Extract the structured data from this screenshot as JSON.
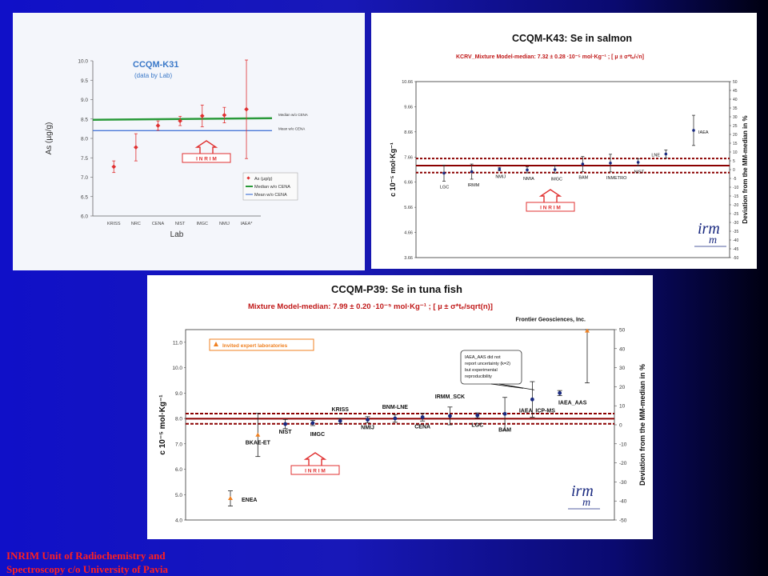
{
  "footer": {
    "line1": "INRIM Unit of Radiochemistry and",
    "line2": "Spectroscopy c/o University of Pavia"
  },
  "inrim_label": "I N R I M",
  "chart_data": [
    {
      "type": "scatter",
      "title": "CCQM-K31",
      "subtitle": "(data by Lab)",
      "xlabel": "Lab",
      "ylabel": "As (µg/g)",
      "ylim": [
        6.0,
        10.0
      ],
      "yticks": [
        "6.0",
        "6.5",
        "7.0",
        "7.5",
        "8.0",
        "8.5",
        "9.0",
        "9.5",
        "10.0"
      ],
      "categories": [
        "KRISS",
        "NRC",
        "CENA",
        "NIST",
        "IMGC",
        "NMIJ",
        "IAEA*"
      ],
      "values": [
        7.27,
        7.77,
        8.33,
        8.45,
        8.58,
        8.6,
        8.75
      ],
      "err": [
        0.15,
        0.35,
        0.12,
        0.12,
        0.28,
        0.2,
        1.27
      ],
      "median": 8.5,
      "mean": 8.2,
      "median_label": "Median w/o CENA",
      "mean_label": "Mean w/o CENA",
      "legend": [
        "As (µg/g)",
        "Median w/o CENA",
        "Mean w/o CENA"
      ],
      "colors": {
        "points": "#e03030",
        "median": "#2a9a3a",
        "mean": "#4a78d8",
        "title": "#3a78c8"
      }
    },
    {
      "type": "scatter",
      "title": "CCQM-K43:  Se in salmon",
      "subtitle": "KCRV_Mixture Model-median: 7.32 ± 0.28 ·10⁻⁵ mol·Kg⁻¹ ; [ µ ± σ*tₑ/√n]",
      "ylabel": "c  10⁻⁵ mol·Kg⁻¹",
      "y2label": "Deviation from the MM-median in %",
      "ylim": [
        3.66,
        10.66
      ],
      "yticks": [
        "3.66",
        "4.66",
        "5.66",
        "6.66",
        "7.66",
        "8.66",
        "9.66",
        "10.66"
      ],
      "y2ticks": [
        "-50",
        "-45",
        "-40",
        "-35",
        "-30",
        "-25",
        "-20",
        "-15",
        "-10",
        "-5",
        "0",
        "5",
        "10",
        "15",
        "20",
        "25",
        "30",
        "35",
        "40",
        "45",
        "50"
      ],
      "y2lim": [
        -50,
        50
      ],
      "categories": [
        "LGC",
        "IRMM",
        "NMIJ",
        "NMIA",
        "IMGC",
        "BAM",
        "INMETRO",
        "NIST",
        "LNE",
        "IAEA"
      ],
      "values": [
        7.02,
        7.08,
        7.18,
        7.15,
        7.16,
        7.38,
        7.42,
        7.45,
        7.78,
        8.72
      ],
      "err": [
        0.32,
        0.3,
        0.07,
        0.12,
        0.14,
        0.3,
        0.35,
        0.14,
        0.16,
        0.6
      ],
      "median": 7.32,
      "band": [
        7.04,
        7.6
      ],
      "colors": {
        "line": "#8b0000",
        "points": "#1a2a80",
        "subtitle": "#c01818"
      }
    },
    {
      "type": "scatter",
      "title": "CCQM-P39:  Se in tuna fish",
      "subtitle": "Mixture Model-median:  7.99 ± 0.20 ·10⁻⁵ mol·Kg⁻¹ ; [ µ ± σ*tₑ/sqrt(n)]",
      "ylabel": "c  10⁻⁵ mol·Kg⁻¹",
      "y2label": "Deviation from the MM-median in %",
      "ylim": [
        4.0,
        11.5
      ],
      "yticks": [
        "4.0",
        "5.0",
        "6.0",
        "7.0",
        "8.0",
        "9.0",
        "10.0",
        "11.0"
      ],
      "y2ticks": [
        "-50",
        "-40",
        "-30",
        "-20",
        "-10",
        "0",
        "10",
        "20",
        "30",
        "40",
        "50"
      ],
      "y2lim": [
        -50,
        50
      ],
      "categories": [
        "ENEA",
        "BKAE-ET",
        "NIST",
        "IMGC",
        "KRISS",
        "NMIJ",
        "BNM-LNE",
        "CENA",
        "IRMM_SCK",
        "LGC",
        "BAM",
        "IAEA_ICP-MS",
        "IAEA_AAS",
        "Frontier Geosciences, Inc."
      ],
      "values": [
        4.85,
        7.35,
        7.78,
        7.82,
        7.9,
        7.95,
        8.0,
        8.05,
        8.1,
        8.12,
        8.18,
        8.75,
        9.0,
        11.7
      ],
      "err": [
        0.3,
        0.85,
        0.18,
        0.1,
        0.1,
        0.12,
        0.15,
        0.15,
        0.35,
        0.1,
        0.65,
        0.7,
        0.1,
        2.3
      ],
      "invited": [
        true,
        true,
        false,
        false,
        false,
        false,
        false,
        false,
        false,
        false,
        false,
        false,
        false,
        true
      ],
      "median": 7.99,
      "band": [
        7.79,
        8.19
      ],
      "legend": [
        "Invited expert laboratories"
      ],
      "annotation": [
        "IAEA_AAS did not",
        "report uncertainty (k=2)",
        "but experimental",
        "reproducibility"
      ],
      "colors": {
        "line": "#8b0000",
        "points": "#1a2a80",
        "invited": "#f08020",
        "subtitle": "#c01818"
      }
    }
  ]
}
